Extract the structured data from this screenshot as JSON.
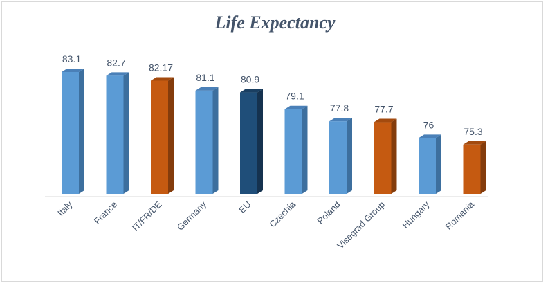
{
  "chart_data": {
    "type": "bar",
    "title": "Life Expectancy",
    "xlabel": "",
    "ylabel": "",
    "ylim": [
      70,
      84
    ],
    "grid": false,
    "legend": "none",
    "categories": [
      "Italy",
      "France",
      "IT/FR/DE",
      "Germany",
      "EU",
      "Czechia",
      "Poland",
      "Visegrad Group",
      "Hungary",
      "Romania"
    ],
    "values": [
      83.1,
      82.7,
      82.17,
      81.1,
      80.9,
      79.1,
      77.8,
      77.7,
      76,
      75.3
    ],
    "value_labels": [
      "83.1",
      "82.7",
      "82.17",
      "81.1",
      "80.9",
      "79.1",
      "77.8",
      "77.7",
      "76",
      "75.3"
    ],
    "bar_groups": [
      "country",
      "country",
      "aggregate",
      "country",
      "eu",
      "country",
      "country",
      "aggregate",
      "country",
      "highlight"
    ],
    "colors": {
      "country": {
        "front": "#5b9bd5",
        "side": "#3d6f9e",
        "top": "#4a80b8"
      },
      "aggregate": {
        "front": "#c55a11",
        "side": "#843c0c",
        "top": "#a34a0e"
      },
      "highlight": {
        "front": "#c55a11",
        "side": "#843c0c",
        "top": "#a34a0e"
      },
      "eu": {
        "front": "#1f4e79",
        "side": "#15324f",
        "top": "#1a3f62"
      },
      "text": "#44546a",
      "axis": "#d9d9d9"
    }
  }
}
